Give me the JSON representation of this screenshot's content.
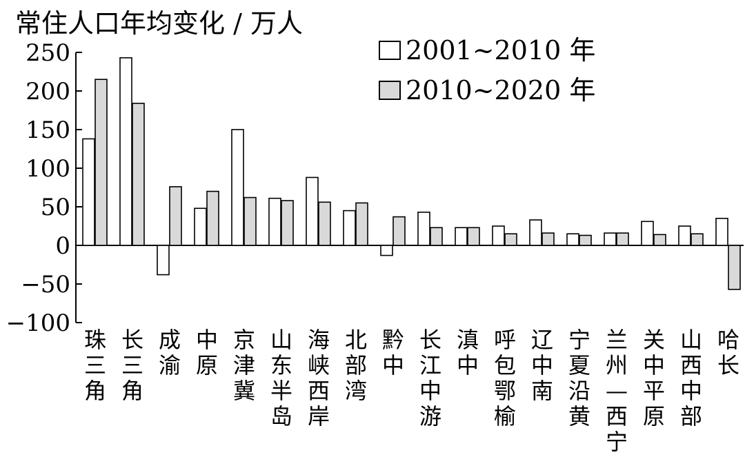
{
  "chart_data": {
    "type": "bar",
    "title": "常住人口年均变化 / 万人",
    "ylim": [
      -100,
      250
    ],
    "yticks": [
      250,
      200,
      150,
      100,
      50,
      0,
      -50,
      -100
    ],
    "ytick_labels": [
      "250",
      "200",
      "150",
      "100",
      "50",
      "0",
      "−50",
      "−100"
    ],
    "grid": false,
    "legend_position": "top-right",
    "categories": [
      "珠三角",
      "长三角",
      "成渝",
      "中原",
      "京津冀",
      "山东半岛",
      "海峡西岸",
      "北部湾",
      "黔中",
      "长江中游",
      "滇中",
      "呼包鄂榆",
      "辽中南",
      "宁夏沿黄",
      "兰州—西宁",
      "关中平原",
      "山西中部",
      "哈长"
    ],
    "series": [
      {
        "name": "2001~2010 年",
        "color": "#ffffff",
        "values": [
          138,
          243,
          -38,
          48,
          150,
          61,
          88,
          45,
          -13,
          43,
          23,
          25,
          33,
          15,
          16,
          31,
          25,
          35
        ]
      },
      {
        "name": "2010~2020 年",
        "color": "#d9d9d9",
        "values": [
          215,
          184,
          76,
          70,
          62,
          58,
          56,
          55,
          37,
          23,
          23,
          15,
          16,
          13,
          16,
          14,
          15,
          -57
        ]
      }
    ]
  }
}
